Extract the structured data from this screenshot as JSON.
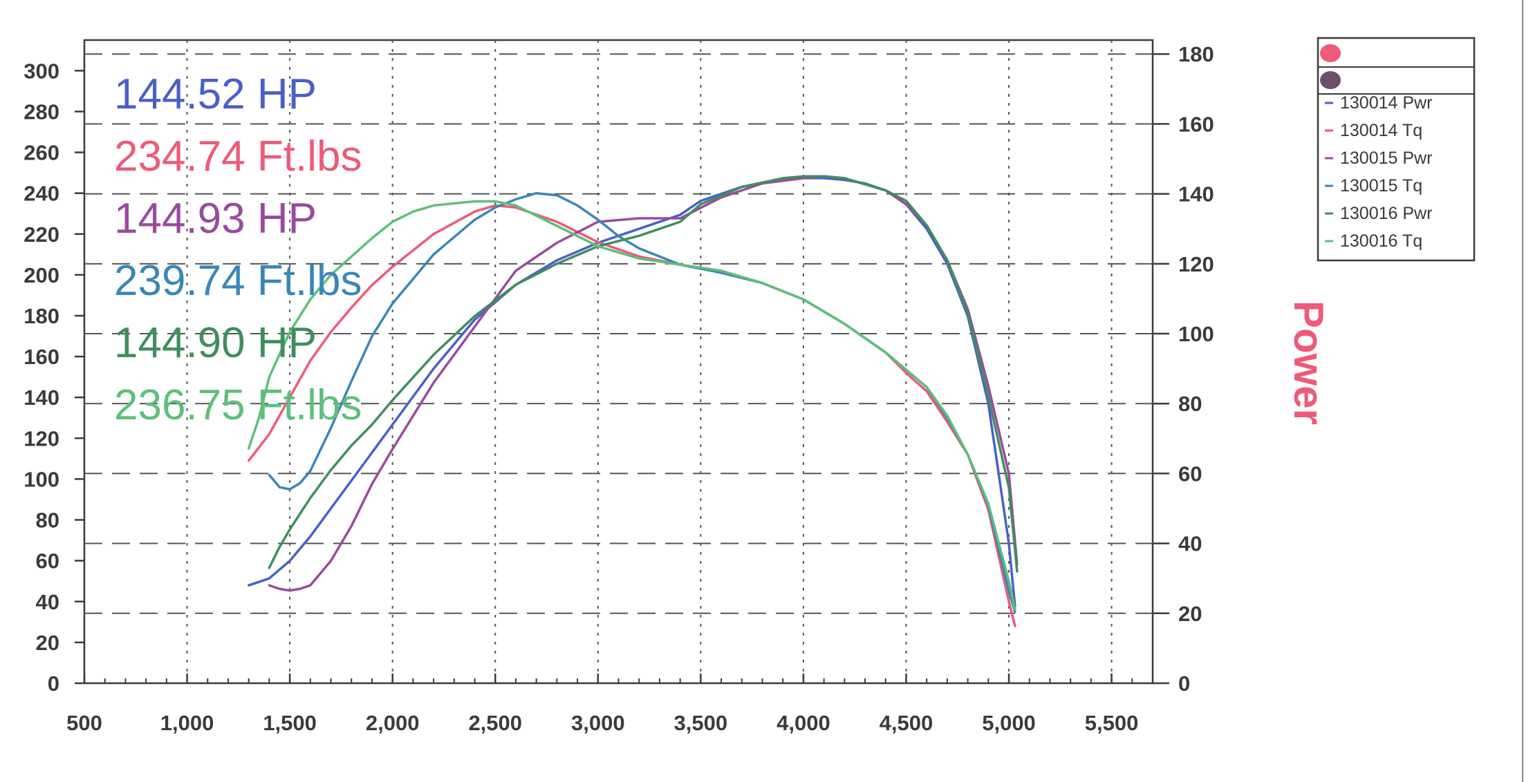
{
  "chart_data": {
    "type": "line",
    "ylabel_right": "Power",
    "x_ticks": [
      "500",
      "1,000",
      "1,500",
      "2,000",
      "2,500",
      "3,000",
      "3,500",
      "4,000",
      "4,500",
      "5,000",
      "5,500"
    ],
    "y_left_ticks": [
      "0",
      "20",
      "40",
      "60",
      "80",
      "100",
      "120",
      "140",
      "160",
      "180",
      "200",
      "220",
      "240",
      "260",
      "280",
      "300"
    ],
    "y_right_ticks": [
      "0",
      "20",
      "40",
      "60",
      "80",
      "100",
      "120",
      "140",
      "160",
      "180"
    ],
    "xlim": [
      500,
      5700
    ],
    "ylim_left": [
      0,
      315
    ],
    "ylim_right": [
      0,
      184
    ],
    "grid": true,
    "legend_position": "top-right",
    "legend_markers": [
      "#ee5a78",
      "#6b4f6b"
    ],
    "peak_labels": [
      {
        "text": "144.52 HP",
        "color": "#4a5fc8"
      },
      {
        "text": "234.74 Ft.lbs",
        "color": "#ee5a78"
      },
      {
        "text": "144.93 HP",
        "color": "#9a4a9e"
      },
      {
        "text": "239.74 Ft.lbs",
        "color": "#3a86b8"
      },
      {
        "text": "144.90 HP",
        "color": "#3e8f5e"
      },
      {
        "text": "236.75 Ft.lbs",
        "color": "#5cc07a"
      }
    ],
    "series": [
      {
        "name": "130014 Pwr",
        "color": "#4a5fc8",
        "axis": "right",
        "x": [
          1300,
          1400,
          1500,
          1600,
          1700,
          1800,
          1900,
          2000,
          2200,
          2400,
          2600,
          2800,
          3000,
          3200,
          3400,
          3500,
          3700,
          3900,
          4000,
          4100,
          4200,
          4300,
          4400,
          4500,
          4600,
          4700,
          4800,
          4900,
          4950,
          5000,
          5030
        ],
        "y": [
          28,
          30,
          35,
          42,
          50,
          58,
          66,
          74,
          90,
          104,
          114,
          121,
          126,
          130,
          134,
          138,
          142,
          144,
          144.5,
          144.5,
          144,
          143,
          141,
          137,
          130,
          120,
          105,
          80,
          60,
          40,
          22
        ]
      },
      {
        "name": "130014 Tq",
        "color": "#ee5a78",
        "axis": "left",
        "x": [
          1300,
          1400,
          1500,
          1600,
          1700,
          1800,
          1900,
          2000,
          2200,
          2400,
          2500,
          2600,
          2800,
          3000,
          3200,
          3400,
          3600,
          3800,
          4000,
          4200,
          4400,
          4500,
          4600,
          4700,
          4800,
          4900,
          5000,
          5030
        ],
        "y": [
          109,
          122,
          140,
          158,
          172,
          184,
          195,
          204,
          220,
          231,
          234,
          233,
          226,
          216,
          209,
          205,
          202,
          196,
          188,
          176,
          162,
          152,
          143,
          128,
          112,
          85,
          40,
          28
        ]
      },
      {
        "name": "130015 Pwr",
        "color": "#9a4a9e",
        "axis": "right",
        "x": [
          1400,
          1450,
          1500,
          1550,
          1600,
          1700,
          1800,
          1900,
          2000,
          2200,
          2400,
          2600,
          2800,
          3000,
          3200,
          3400,
          3600,
          3800,
          4000,
          4100,
          4200,
          4400,
          4500,
          4600,
          4700,
          4800,
          4900,
          5000,
          5040
        ],
        "y": [
          28,
          27,
          26.5,
          27,
          28,
          35,
          45,
          57,
          67,
          86,
          102,
          118,
          126,
          132,
          133,
          133,
          139,
          143,
          144.5,
          145,
          144.5,
          141,
          137,
          131,
          121,
          107,
          85,
          60,
          34
        ]
      },
      {
        "name": "130015 Tq",
        "color": "#3a86b8",
        "axis": "left",
        "x": [
          1400,
          1450,
          1500,
          1550,
          1600,
          1700,
          1800,
          1900,
          2000,
          2200,
          2400,
          2500,
          2600,
          2700,
          2800,
          2900,
          3000,
          3100,
          3200,
          3400,
          3600,
          3800,
          4000,
          4200,
          4400,
          4600,
          4700,
          4800,
          4900,
          5000,
          5030
        ],
        "y": [
          102,
          96,
          95,
          98,
          104,
          125,
          148,
          170,
          186,
          210,
          227,
          233,
          237,
          240,
          239,
          234,
          227,
          219,
          213,
          205,
          201,
          196,
          188,
          176,
          162,
          145,
          130,
          112,
          87,
          45,
          35
        ]
      },
      {
        "name": "130016 Pwr",
        "color": "#3e8f5e",
        "axis": "right",
        "x": [
          1400,
          1450,
          1500,
          1600,
          1700,
          1800,
          1900,
          2000,
          2200,
          2400,
          2600,
          2800,
          3000,
          3200,
          3400,
          3500,
          3700,
          3900,
          4000,
          4100,
          4200,
          4400,
          4500,
          4600,
          4700,
          4800,
          4900,
          5000,
          5040
        ],
        "y": [
          33,
          39,
          44,
          53,
          61,
          68,
          74,
          81,
          94,
          105,
          114,
          120,
          125,
          128,
          132,
          137,
          142,
          144.5,
          145,
          145,
          144.5,
          141,
          138,
          131,
          121,
          106,
          82,
          56,
          32
        ]
      },
      {
        "name": "130016 Tq",
        "color": "#5cc07a",
        "axis": "left",
        "x": [
          1300,
          1350,
          1400,
          1500,
          1600,
          1700,
          1800,
          1900,
          2000,
          2100,
          2200,
          2300,
          2400,
          2500,
          2600,
          2800,
          3000,
          3200,
          3400,
          3600,
          3800,
          4000,
          4200,
          4400,
          4600,
          4700,
          4800,
          4900,
          5000,
          5030
        ],
        "y": [
          115,
          130,
          150,
          172,
          188,
          200,
          209,
          218,
          226,
          231,
          234,
          235,
          236,
          236,
          234,
          224,
          214,
          208,
          205,
          202,
          196,
          188,
          176,
          162,
          145,
          131,
          112,
          88,
          50,
          36
        ]
      }
    ]
  }
}
